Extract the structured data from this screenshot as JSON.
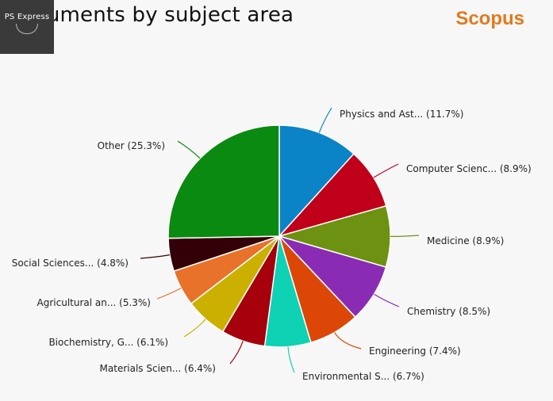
{
  "header": {
    "title": "Documents by subject area",
    "brand": "Scopus",
    "watermark": "PS Express"
  },
  "chart_data": {
    "type": "pie",
    "title": "Documents by subject area",
    "start_angle_deg": 0,
    "direction": "clockwise",
    "slices": [
      {
        "label": "Physics and Ast... (11.7%)",
        "value": 11.7,
        "color": "#0a84c6"
      },
      {
        "label": "Computer Scienc... (8.9%)",
        "value": 8.9,
        "color": "#c0001a"
      },
      {
        "label": "Medicine (8.9%)",
        "value": 8.9,
        "color": "#6d9110"
      },
      {
        "label": "Chemistry (8.5%)",
        "value": 8.5,
        "color": "#8a2cb3"
      },
      {
        "label": "Engineering (7.4%)",
        "value": 7.4,
        "color": "#dc4707"
      },
      {
        "label": "Environmental S... (6.7%)",
        "value": 6.7,
        "color": "#0fd1b4"
      },
      {
        "label": "Materials Scien... (6.4%)",
        "value": 6.4,
        "color": "#a5000c"
      },
      {
        "label": "Biochemistry, G... (6.1%)",
        "value": 6.1,
        "color": "#cbb000"
      },
      {
        "label": "Agricultural an... (5.3%)",
        "value": 5.3,
        "color": "#e8722a"
      },
      {
        "label": "Social Sciences... (4.8%)",
        "value": 4.8,
        "color": "#330008"
      },
      {
        "label": "Other (25.3%)",
        "value": 25.3,
        "color": "#0a8a10"
      }
    ]
  }
}
